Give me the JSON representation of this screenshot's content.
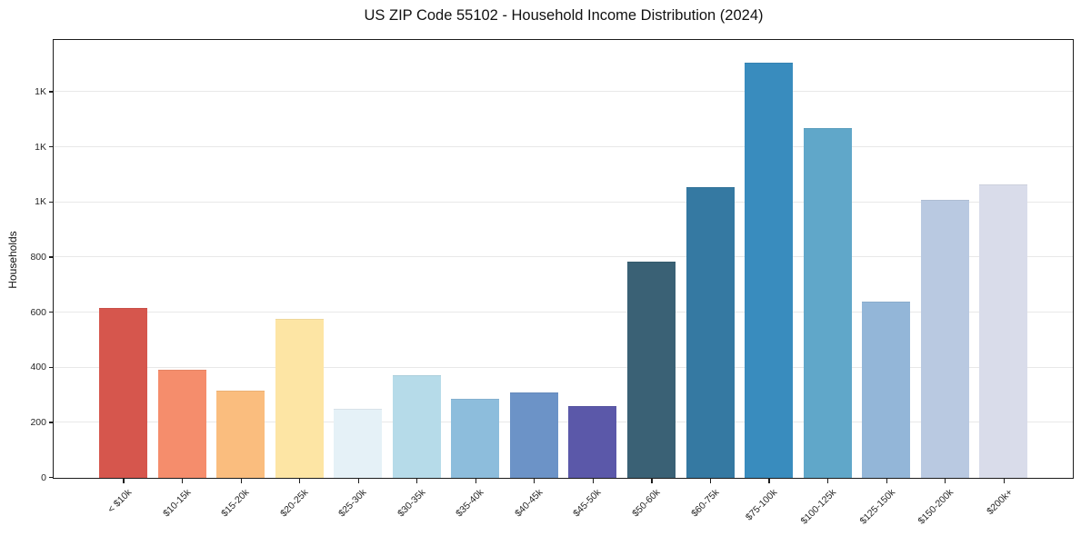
{
  "chart": {
    "title": "US ZIP Code 55102 - Household Income Distribution (2024)",
    "ylabel": "Households"
  },
  "chart_data": {
    "type": "bar",
    "title": "US ZIP Code 55102 - Household Income Distribution (2024)",
    "xlabel": "",
    "ylabel": "Households",
    "categories": [
      "< $10k",
      "$10-15k",
      "$15-20k",
      "$20-25k",
      "$25-30k",
      "$30-35k",
      "$35-40k",
      "$40-45k",
      "$45-50k",
      "$50-60k",
      "$60-75k",
      "$75-100k",
      "$100-125k",
      "$125-150k",
      "$150-200k",
      "$200k+"
    ],
    "values": [
      616,
      391,
      318,
      578,
      249,
      371,
      286,
      309,
      259,
      785,
      1055,
      1507,
      1270,
      640,
      1008,
      1066
    ],
    "bar_colors": [
      "#d6564d",
      "#f58d6c",
      "#fabd7e",
      "#fde5a4",
      "#e5f1f7",
      "#b6dbe9",
      "#8dbddc",
      "#6c93c7",
      "#5b58a9",
      "#3a6175",
      "#3579a2",
      "#398cbe",
      "#60a7c9",
      "#93b6d8",
      "#b9c9e1",
      "#d9dcea"
    ],
    "ylim": [
      0,
      1586
    ],
    "ytick_values": [
      0,
      200,
      400,
      600,
      800,
      1000,
      1200,
      1400
    ],
    "ytick_labels": [
      "0",
      "200",
      "400",
      "600",
      "800",
      "1K",
      "1K",
      "1K"
    ],
    "grid": "horizontal",
    "gridline_color": "#e8e8e8",
    "legend": "none",
    "background": "#ffffff",
    "spine_color": "#1c1c1c",
    "x_tick_rotation_deg": 45
  }
}
